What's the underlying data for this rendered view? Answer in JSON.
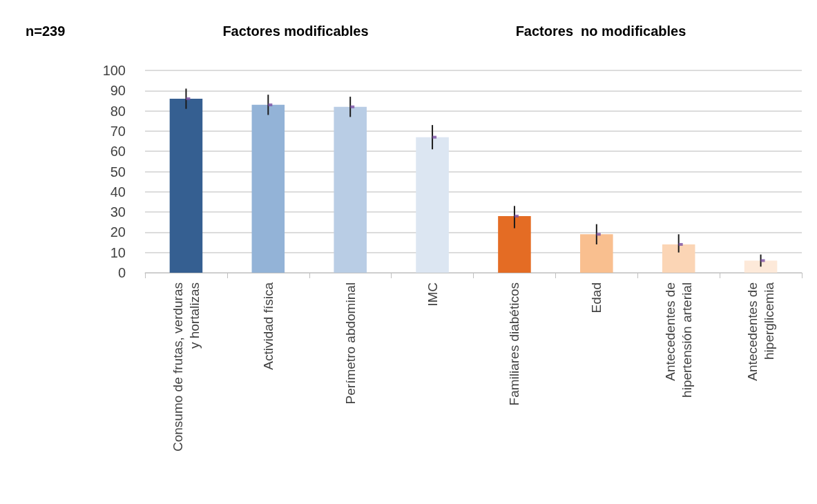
{
  "chart_data": {
    "type": "bar",
    "categories": [
      "Consumo de frutas, verduras\ny hortalizas",
      "Actividad física",
      "Perímetro abdominal",
      "IMC",
      "Familiares diabéticos",
      "Edad",
      "Antecedentes de\nhipertensión arterial",
      "Antecedentes de\nhiperglicemia"
    ],
    "series": [
      {
        "values": [
          86,
          83,
          82,
          67,
          28,
          19,
          14,
          6
        ],
        "colors": [
          "#355f91",
          "#93b3d7",
          "#b9cde5",
          "#dce6f2",
          "#e46c24",
          "#f9bf8f",
          "#fbd5b5",
          "#fde9d9"
        ],
        "errors": [
          5,
          5,
          5,
          6,
          [
            22,
            33
          ],
          5,
          [
            10,
            19
          ],
          3
        ]
      },
      {
        "type": "scatter",
        "x": [
          "Consumo de frutas, verduras\ny hortalizas",
          "Actividad física",
          "Perímetro abdominal",
          "IMC",
          "Familiares diabéticos",
          "Edad",
          "Antecedentes de\nhipertensión arterial",
          "Antecedentes de\nhiperglicemia"
        ],
        "values": [
          86,
          83,
          82,
          67,
          28,
          19,
          14,
          6
        ],
        "color": "#7a4fa3",
        "marker": "square"
      }
    ],
    "ylim": [
      0,
      100
    ],
    "yticks": [
      0,
      10,
      20,
      30,
      40,
      50,
      60,
      70,
      80,
      90,
      100
    ],
    "grid": "y",
    "annotations": [
      "n=239",
      "Factores modificables",
      "Factores  no modificables"
    ]
  }
}
